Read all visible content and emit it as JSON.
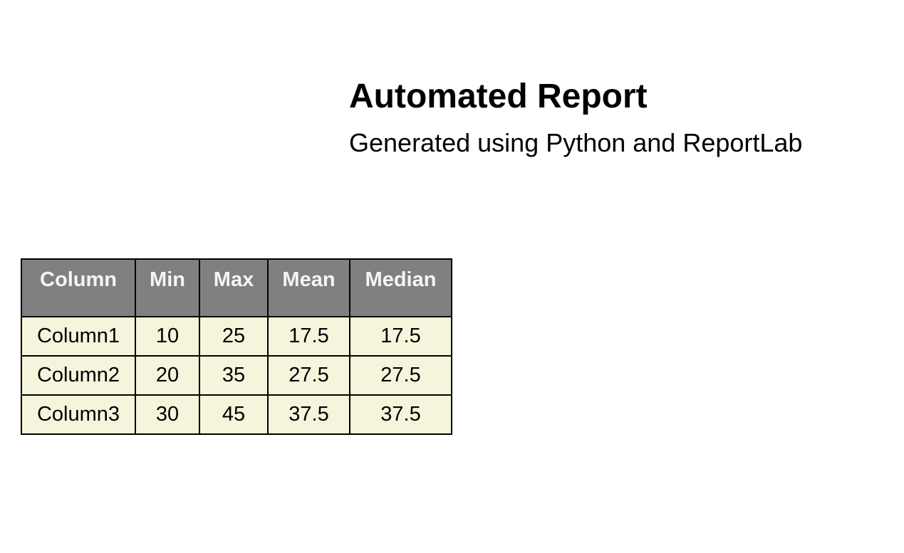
{
  "report": {
    "title": "Automated Report",
    "subtitle": "Generated using Python and ReportLab"
  },
  "table": {
    "headers": [
      "Column",
      "Min",
      "Max",
      "Mean",
      "Median"
    ],
    "rows": [
      [
        "Column1",
        "10",
        "25",
        "17.5",
        "17.5"
      ],
      [
        "Column2",
        "20",
        "35",
        "27.5",
        "27.5"
      ],
      [
        "Column3",
        "30",
        "45",
        "37.5",
        "37.5"
      ]
    ],
    "colors": {
      "header_bg": "#808080",
      "header_text": "#f5f5f5",
      "cell_bg": "#f5f5dc",
      "grid": "#000000"
    }
  }
}
